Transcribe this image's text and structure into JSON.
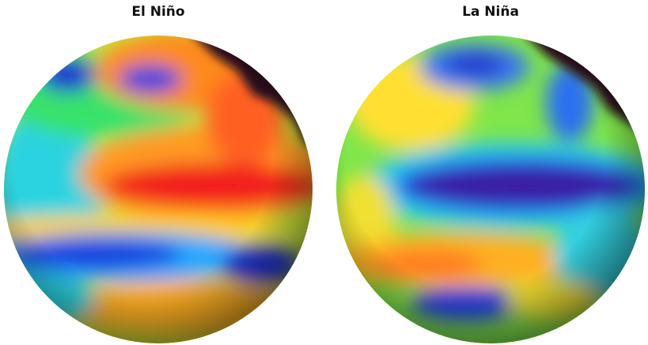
{
  "panels": [
    {
      "title": "El Niño"
    },
    {
      "title": "La Niña"
    }
  ]
}
